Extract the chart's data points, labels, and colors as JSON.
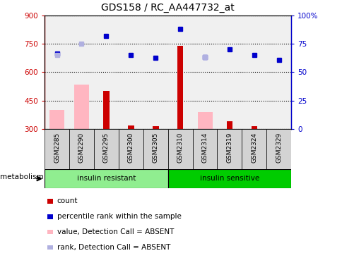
{
  "title": "GDS158 / RC_AA447732_at",
  "samples": [
    "GSM2285",
    "GSM2290",
    "GSM2295",
    "GSM2300",
    "GSM2305",
    "GSM2310",
    "GSM2314",
    "GSM2319",
    "GSM2324",
    "GSM2329"
  ],
  "ylim_left": [
    300,
    900
  ],
  "ylim_right": [
    0,
    100
  ],
  "yticks_left": [
    300,
    450,
    600,
    750,
    900
  ],
  "yticks_right": [
    0,
    25,
    50,
    75,
    100
  ],
  "ytick_labels_right": [
    "0",
    "25",
    "50",
    "75",
    "100%"
  ],
  "red_bars": [
    null,
    null,
    500,
    320,
    315,
    740,
    null,
    340,
    315,
    null
  ],
  "pink_bars": [
    400,
    535,
    null,
    null,
    null,
    null,
    390,
    null,
    null,
    null
  ],
  "blue_dots": [
    700,
    null,
    790,
    690,
    675,
    830,
    680,
    720,
    690,
    665
  ],
  "lavender_dots": [
    690,
    750,
    null,
    null,
    null,
    null,
    680,
    null,
    null,
    null
  ],
  "left_axis_color": "#cc0000",
  "right_axis_color": "#0000cc",
  "group1_color": "#90ee90",
  "group2_color": "#00cc00",
  "plot_bg": "#f0f0f0",
  "legend_items": [
    {
      "label": "count",
      "color": "#cc0000"
    },
    {
      "label": "percentile rank within the sample",
      "color": "#0000cc"
    },
    {
      "label": "value, Detection Call = ABSENT",
      "color": "#ffb6c1"
    },
    {
      "label": "rank, Detection Call = ABSENT",
      "color": "#b0b0e0"
    }
  ]
}
